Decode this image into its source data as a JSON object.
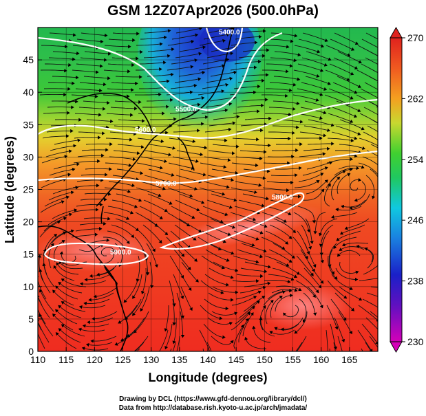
{
  "title": "GSM 12Z07Apr2026 (500.0hPa)",
  "xlabel": "Longitude (degrees)",
  "ylabel": "Latitude  (degrees)",
  "credits": {
    "line1": "Drawing by DCL (https://www.gfd-dennou.org/library/dcl/)",
    "line2": "Data from http://database.rish.kyoto-u.ac.jp/arch/jmadata/"
  },
  "map": {
    "lon_range": [
      110,
      170
    ],
    "lat_range": [
      0,
      50
    ],
    "lon_ticks": [
      110,
      115,
      120,
      125,
      130,
      135,
      140,
      145,
      150,
      155,
      160,
      165
    ],
    "lat_ticks": [
      0,
      5,
      10,
      15,
      20,
      25,
      30,
      35,
      40,
      45
    ],
    "grid": true
  },
  "colorbar": {
    "range": [
      230,
      270
    ],
    "ticks": [
      230,
      238,
      246,
      254,
      262,
      270
    ],
    "colors": [
      "#d400b8",
      "#2020c8",
      "#10c8e0",
      "#2ed03a",
      "#f0e030",
      "#f47a1c",
      "#e0221e"
    ]
  },
  "contours": [
    {
      "label": "5400.0",
      "value": 5400
    },
    {
      "label": "5500.0",
      "value": 5500
    },
    {
      "label": "5600.0",
      "value": 5600
    },
    {
      "label": "5700.0",
      "value": 5700
    },
    {
      "label": "5800.0",
      "value": 5800
    },
    {
      "label": "5900.0",
      "value": 5900
    }
  ]
}
